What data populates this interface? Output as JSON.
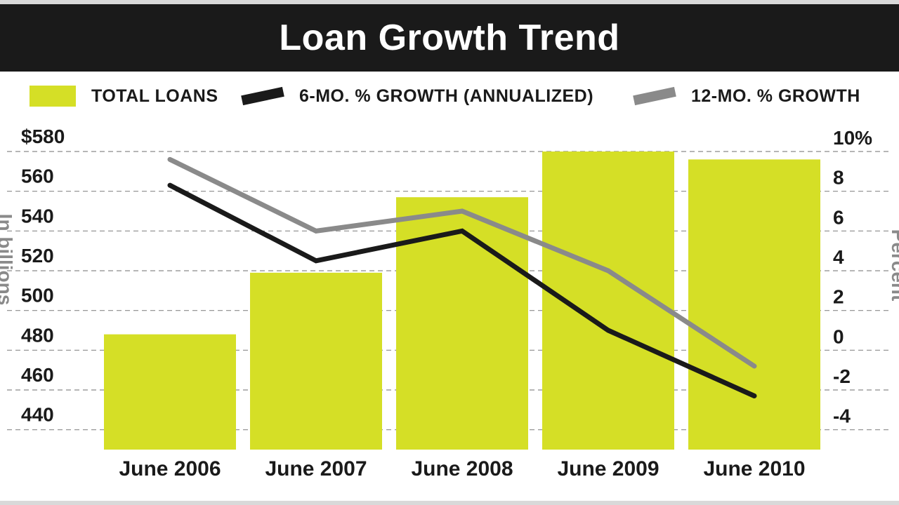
{
  "colors": {
    "title_bar": "#1a1a1a",
    "bar": "#d5df26",
    "six_month_line": "#1a1a1a",
    "twelve_month_line": "#8a8a8a",
    "grid": "#8a8a8a"
  },
  "chart_data": {
    "type": "bar",
    "title": "Loan Growth Trend",
    "categories": [
      "June 2006",
      "June 2007",
      "June 2008",
      "June 2009",
      "June 2010"
    ],
    "legend": [
      "TOTAL LOANS",
      "6-MO. % GROWTH (ANNUALIZED)",
      "12-MO. % GROWTH"
    ],
    "legend_placement": "top",
    "grid": true,
    "left_axis": {
      "label": "In billions",
      "ticks": [
        "$580",
        "560",
        "540",
        "520",
        "500",
        "480",
        "460",
        "440"
      ],
      "ylim": [
        430,
        580
      ]
    },
    "right_axis": {
      "label": "Percent",
      "ticks": [
        "10%",
        "8",
        "6",
        "4",
        "2",
        "0",
        "-2",
        "-4"
      ],
      "ylim": [
        -5,
        10
      ]
    },
    "series": [
      {
        "name": "TOTAL LOANS",
        "kind": "bar",
        "axis": "left",
        "values": [
          488,
          519,
          557,
          580,
          576
        ]
      },
      {
        "name": "6-MO. % GROWTH (ANNUALIZED)",
        "kind": "line",
        "axis": "right",
        "values": [
          8.3,
          4.5,
          6.0,
          1.0,
          -2.3
        ]
      },
      {
        "name": "12-MO. % GROWTH",
        "kind": "line",
        "axis": "right",
        "values": [
          9.6,
          6.0,
          7.0,
          4.0,
          -0.8
        ]
      }
    ]
  }
}
